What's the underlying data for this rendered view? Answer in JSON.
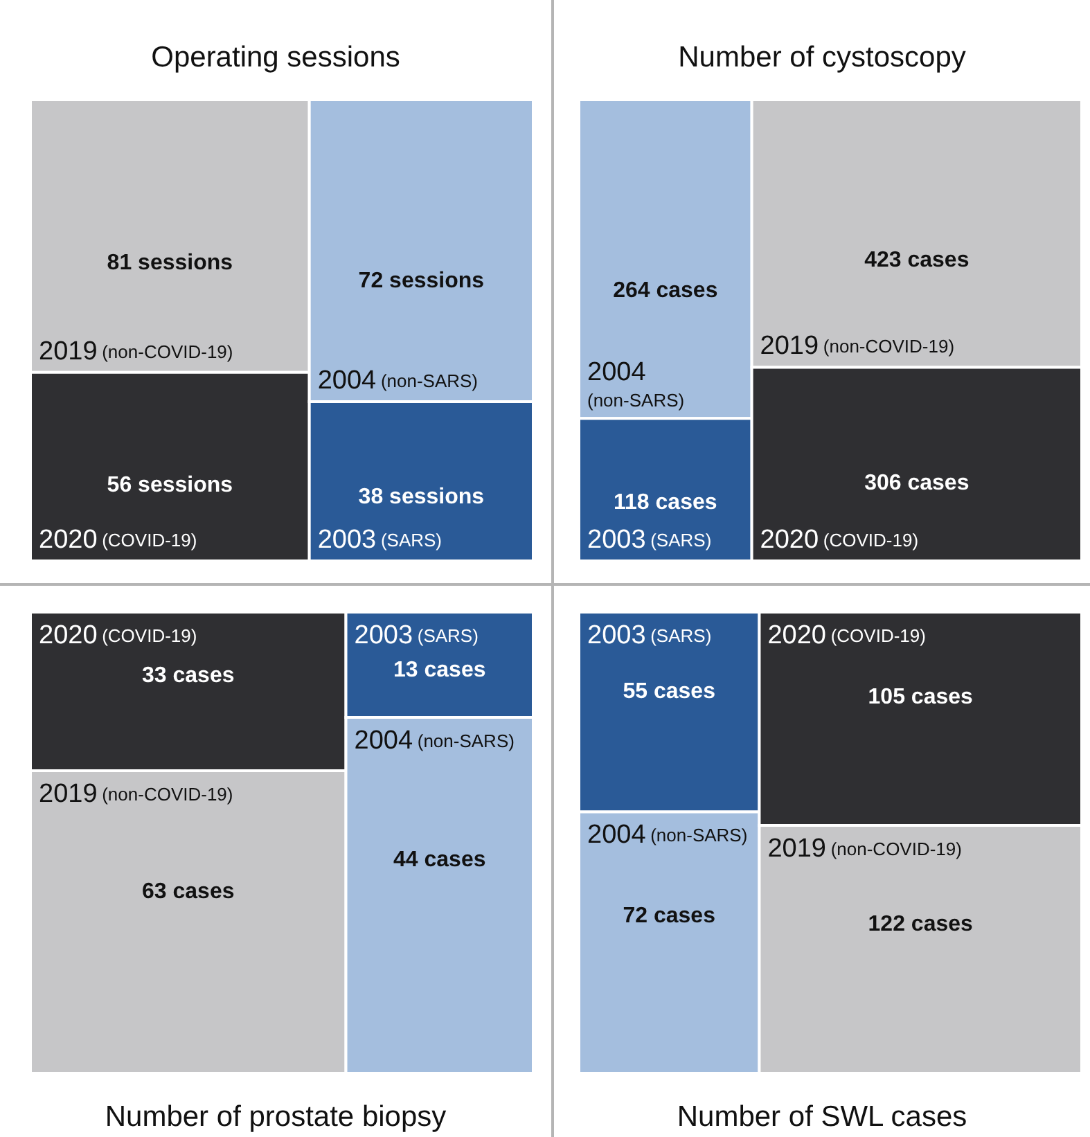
{
  "chart_data": [
    {
      "type": "other",
      "title": "Operating sessions",
      "categories": [
        "2019 (non-COVID-19)",
        "2020 (COVID-19)",
        "2004 (non-SARS)",
        "2003 (SARS)"
      ],
      "values": [
        81,
        56,
        72,
        38
      ],
      "colors": [
        "#c6c6c8",
        "#2f2f32",
        "#a4bede",
        "#2a5a97"
      ],
      "value_labels": [
        "81 sessions",
        "56 sessions",
        "72 sessions",
        "38 sessions"
      ]
    },
    {
      "type": "other",
      "title": "Number of cystoscopy",
      "categories": [
        "2004 (non-SARS)",
        "2003 (SARS)",
        "2019 (non-COVID-19)",
        "2020 (COVID-19)"
      ],
      "values": [
        264,
        118,
        423,
        306
      ],
      "colors": [
        "#a4bede",
        "#2a5a97",
        "#c6c6c8",
        "#2f2f32"
      ],
      "value_labels": [
        "264 cases",
        "118 cases",
        "423 cases",
        "306 cases"
      ]
    },
    {
      "type": "other",
      "title": "Number of prostate biopsy",
      "categories": [
        "2020 (COVID-19)",
        "2019 (non-COVID-19)",
        "2003 (SARS)",
        "2004 (non-SARS)"
      ],
      "values": [
        33,
        63,
        13,
        44
      ],
      "colors": [
        "#2f2f32",
        "#c6c6c8",
        "#2a5a97",
        "#a4bede"
      ],
      "value_labels": [
        "33 cases",
        "63 cases",
        "13 cases",
        "44 cases"
      ]
    },
    {
      "type": "other",
      "title": "Number of SWL cases",
      "categories": [
        "2003 (SARS)",
        "2004 (non-SARS)",
        "2020 (COVID-19)",
        "2019 (non-COVID-19)"
      ],
      "values": [
        55,
        72,
        105,
        122
      ],
      "colors": [
        "#2a5a97",
        "#a4bede",
        "#2f2f32",
        "#c6c6c8"
      ],
      "value_labels": [
        "55 cases",
        "72 cases",
        "105 cases",
        "122 cases"
      ]
    }
  ]
}
